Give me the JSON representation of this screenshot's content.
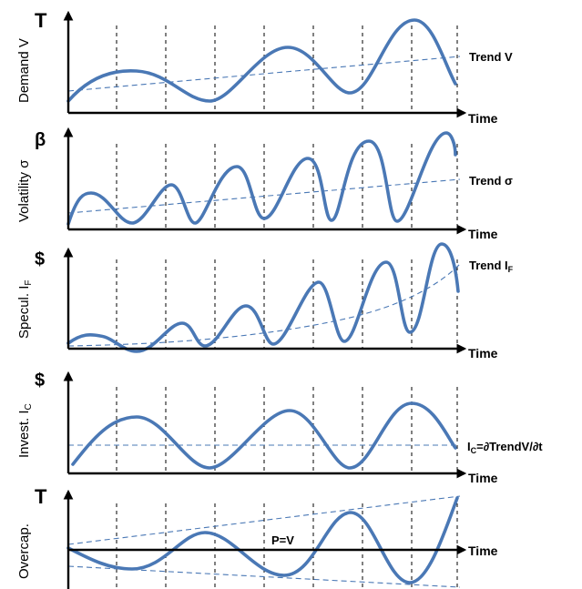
{
  "panels": [
    {
      "id": "demand",
      "unit": "T",
      "ylabel": "Demand V",
      "ylabel_sub": "",
      "xlabel": "Time",
      "trend_label": "Trend V",
      "trend_sub": "",
      "trend_rest": ""
    },
    {
      "id": "volatility",
      "unit": "β",
      "ylabel": "Volatility σ",
      "ylabel_sub": "",
      "xlabel": "Time",
      "trend_label": "Trend σ",
      "trend_sub": "",
      "trend_rest": ""
    },
    {
      "id": "speculation",
      "unit": "$",
      "ylabel": "Specul. I",
      "ylabel_sub": "F",
      "xlabel": "Time",
      "trend_label": "Trend I",
      "trend_sub": "F",
      "trend_rest": ""
    },
    {
      "id": "investment",
      "unit": "$",
      "ylabel": "Invest. I",
      "ylabel_sub": "C",
      "xlabel": "Time",
      "trend_label": "I",
      "trend_sub": "C",
      "trend_rest": "=∂TrendV/∂t"
    },
    {
      "id": "overcapacity",
      "unit": "T",
      "ylabel": "Overcap.",
      "ylabel_sub": "",
      "xlabel": "Time",
      "trend_label": "P=V",
      "trend_sub": "",
      "trend_rest": ""
    }
  ],
  "colors": {
    "curve": "#4a78b5",
    "trend": "#4a78b5",
    "axis": "#000000"
  }
}
